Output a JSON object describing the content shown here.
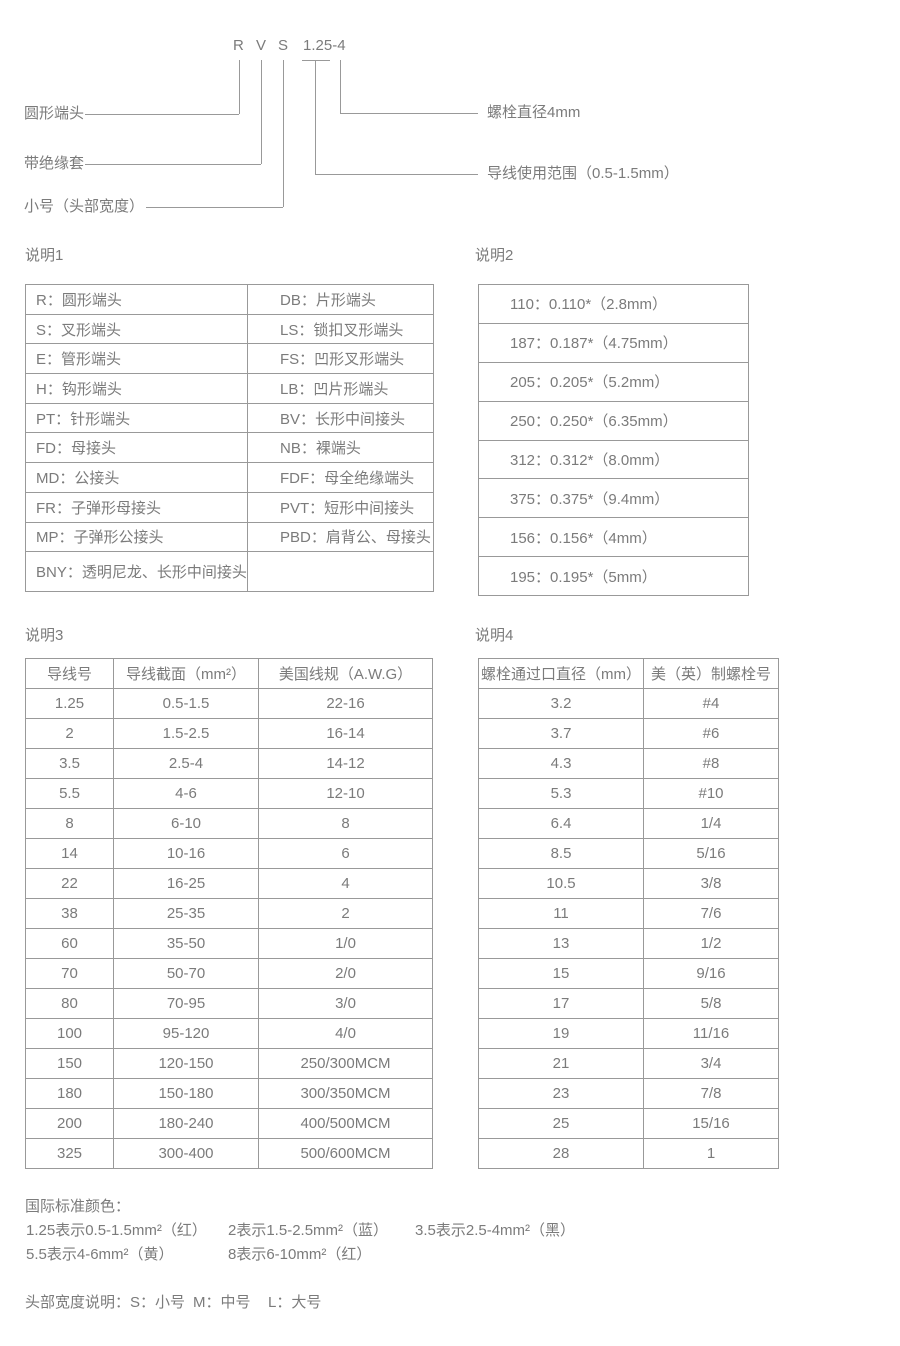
{
  "colors": {
    "text": "#7b7b7b",
    "border": "#999999",
    "line": "#999999",
    "background": "#ffffff"
  },
  "diagram": {
    "code": [
      "R",
      "V",
      "S",
      "1.25-4"
    ],
    "labels": {
      "round_terminal": "圆形端头",
      "insulated_sleeve": "带绝缘套",
      "small_head": "小号（头部宽度）",
      "bolt_diameter": "螺栓直径4mm",
      "wire_range": "导线使用范围（0.5-1.5mm）"
    }
  },
  "sections": {
    "s1": {
      "title": "说明1",
      "rows": [
        [
          "R：圆形端头",
          "DB：片形端头"
        ],
        [
          "S：叉形端头",
          "LS：锁扣叉形端头"
        ],
        [
          "E：管形端头",
          "FS：凹形叉形端头"
        ],
        [
          "H：钩形端头",
          "LB：凹片形端头"
        ],
        [
          "PT：针形端头",
          "BV：长形中间接头"
        ],
        [
          "FD：母接头",
          "NB：裸端头"
        ],
        [
          "MD：公接头",
          "FDF：母全绝缘端头"
        ],
        [
          "FR：子弹形母接头",
          "PVT：短形中间接头"
        ],
        [
          "MP：子弹形公接头",
          "PBD：肩背公、母接头"
        ],
        [
          "BNY：透明尼龙、长形中间接头",
          ""
        ]
      ]
    },
    "s2": {
      "title": "说明2",
      "rows": [
        [
          "110：0.110*（2.8mm）"
        ],
        [
          "187：0.187*（4.75mm）"
        ],
        [
          "205：0.205*（5.2mm）"
        ],
        [
          "250：0.250*（6.35mm）"
        ],
        [
          "312：0.312*（8.0mm）"
        ],
        [
          "375：0.375*（9.4mm）"
        ],
        [
          "156：0.156*（4mm）"
        ],
        [
          "195：0.195*（5mm）"
        ]
      ]
    },
    "s3": {
      "title": "说明3",
      "headers": [
        "导线号",
        "导线截面（mm²）",
        "美国线规（A.W.G）"
      ],
      "rows": [
        [
          "1.25",
          "0.5-1.5",
          "22-16"
        ],
        [
          "2",
          "1.5-2.5",
          "16-14"
        ],
        [
          "3.5",
          "2.5-4",
          "14-12"
        ],
        [
          "5.5",
          "4-6",
          "12-10"
        ],
        [
          "8",
          "6-10",
          "8"
        ],
        [
          "14",
          "10-16",
          "6"
        ],
        [
          "22",
          "16-25",
          "4"
        ],
        [
          "38",
          "25-35",
          "2"
        ],
        [
          "60",
          "35-50",
          "1/0"
        ],
        [
          "70",
          "50-70",
          "2/0"
        ],
        [
          "80",
          "70-95",
          "3/0"
        ],
        [
          "100",
          "95-120",
          "4/0"
        ],
        [
          "150",
          "120-150",
          "250/300MCM"
        ],
        [
          "180",
          "150-180",
          "300/350MCM"
        ],
        [
          "200",
          "180-240",
          "400/500MCM"
        ],
        [
          "325",
          "300-400",
          "500/600MCM"
        ]
      ]
    },
    "s4": {
      "title": "说明4",
      "headers": [
        "螺栓通过口直径（mm）",
        "美（英）制螺栓号"
      ],
      "rows": [
        [
          "3.2",
          "#4"
        ],
        [
          "3.7",
          "#6"
        ],
        [
          "4.3",
          "#8"
        ],
        [
          "5.3",
          "#10"
        ],
        [
          "6.4",
          "1/4"
        ],
        [
          "8.5",
          "5/16"
        ],
        [
          "10.5",
          "3/8"
        ],
        [
          "11",
          "7/6"
        ],
        [
          "13",
          "1/2"
        ],
        [
          "15",
          "9/16"
        ],
        [
          "17",
          "5/8"
        ],
        [
          "19",
          "11/16"
        ],
        [
          "21",
          "3/4"
        ],
        [
          "23",
          "7/8"
        ],
        [
          "25",
          "15/16"
        ],
        [
          "28",
          "1"
        ]
      ]
    }
  },
  "notes": {
    "color_title": "国际标准颜色：",
    "color_line1": [
      "1.25表示0.5-1.5mm²（红）",
      "2表示1.5-2.5mm²（蓝）",
      "3.5表示2.5-4mm²（黑）"
    ],
    "color_line2": [
      "5.5表示4-6mm²（黄）",
      "8表示6-10mm²（红）"
    ],
    "head_width_line": [
      "头部宽度说明：S：小号",
      "M：中号",
      "L：大号"
    ]
  }
}
